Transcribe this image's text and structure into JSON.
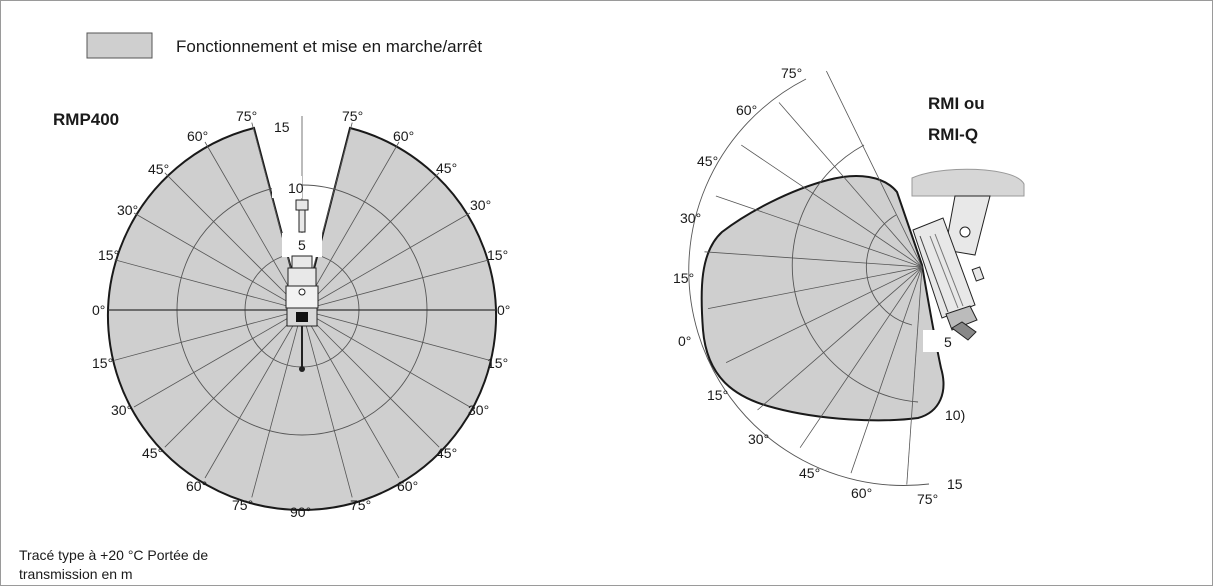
{
  "legend": {
    "label": "Fonctionnement et mise en marche/arrêt",
    "swatch_color": "#cfcfcf"
  },
  "left_diagram": {
    "title": "RMP400",
    "angle_labels": [
      "75°",
      "60°",
      "45°",
      "30°",
      "15°",
      "0°",
      "15°",
      "30°",
      "45°",
      "60°",
      "75°",
      "90°",
      "75°",
      "60°",
      "45°",
      "30°",
      "15°",
      "0°",
      "15°",
      "30°",
      "45°",
      "60°",
      "75°"
    ],
    "range_labels": [
      "15",
      "10",
      "5"
    ]
  },
  "right_diagram": {
    "title_line1": "RMI ou",
    "title_line2": "RMI-Q",
    "angle_labels": [
      "75°",
      "60°",
      "45°",
      "30°",
      "15°",
      "0°",
      "15°",
      "30°",
      "45°",
      "60°",
      "75°"
    ],
    "range_labels": [
      "5",
      "10)",
      "15"
    ]
  },
  "footnote": "Tracé type à +20 °C Portée de transmission en m",
  "colors": {
    "fill": "#cfcfcf",
    "outline": "#1a1a1a",
    "grid": "#555555",
    "device": "#e8e8e8"
  }
}
